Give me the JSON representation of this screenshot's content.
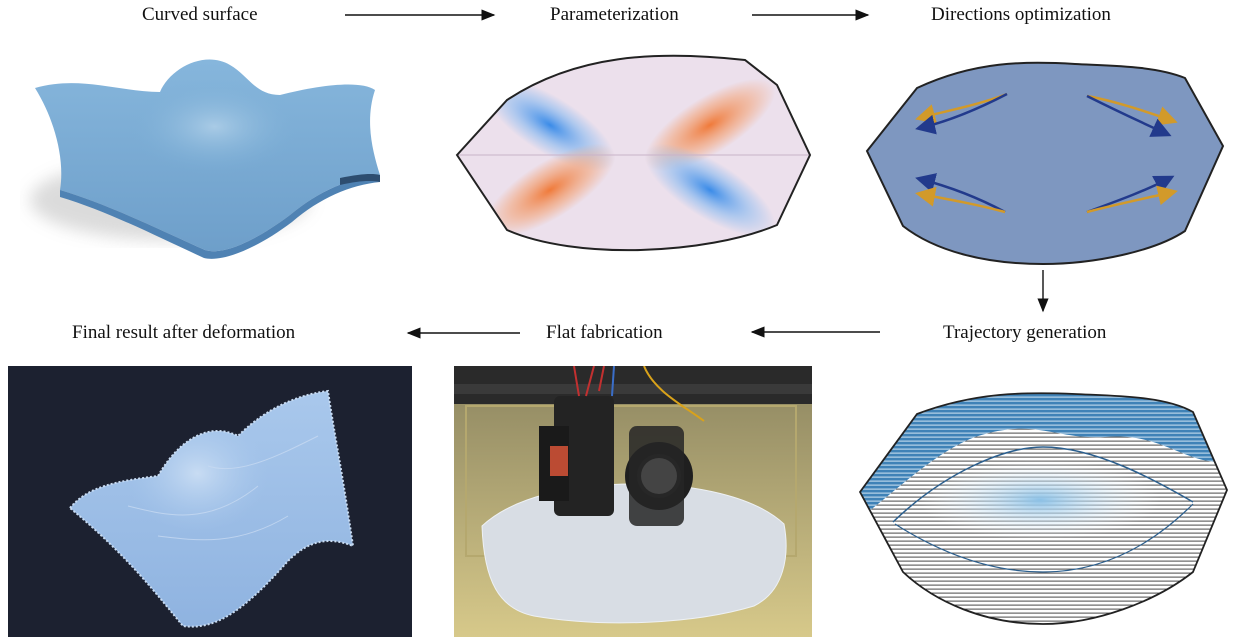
{
  "steps": {
    "curved_surface": "Curved surface",
    "parameterization": "Parameterization",
    "directions_optimization": "Directions optimization",
    "trajectory_generation": "Trajectory generation",
    "flat_fabrication": "Flat fabrication",
    "final_result": "Final result after deformation"
  },
  "colors": {
    "surface_blue": "#7aaed6",
    "domain_fill": "#7e97c0",
    "arrow_orange": "#d29a2a",
    "arrow_blue": "#223a8c",
    "heat_orange": "#f07a3a",
    "heat_blue": "#3a8be8",
    "photo_bg_dark": "#1c2130",
    "print_bed": "#c6b97a"
  }
}
